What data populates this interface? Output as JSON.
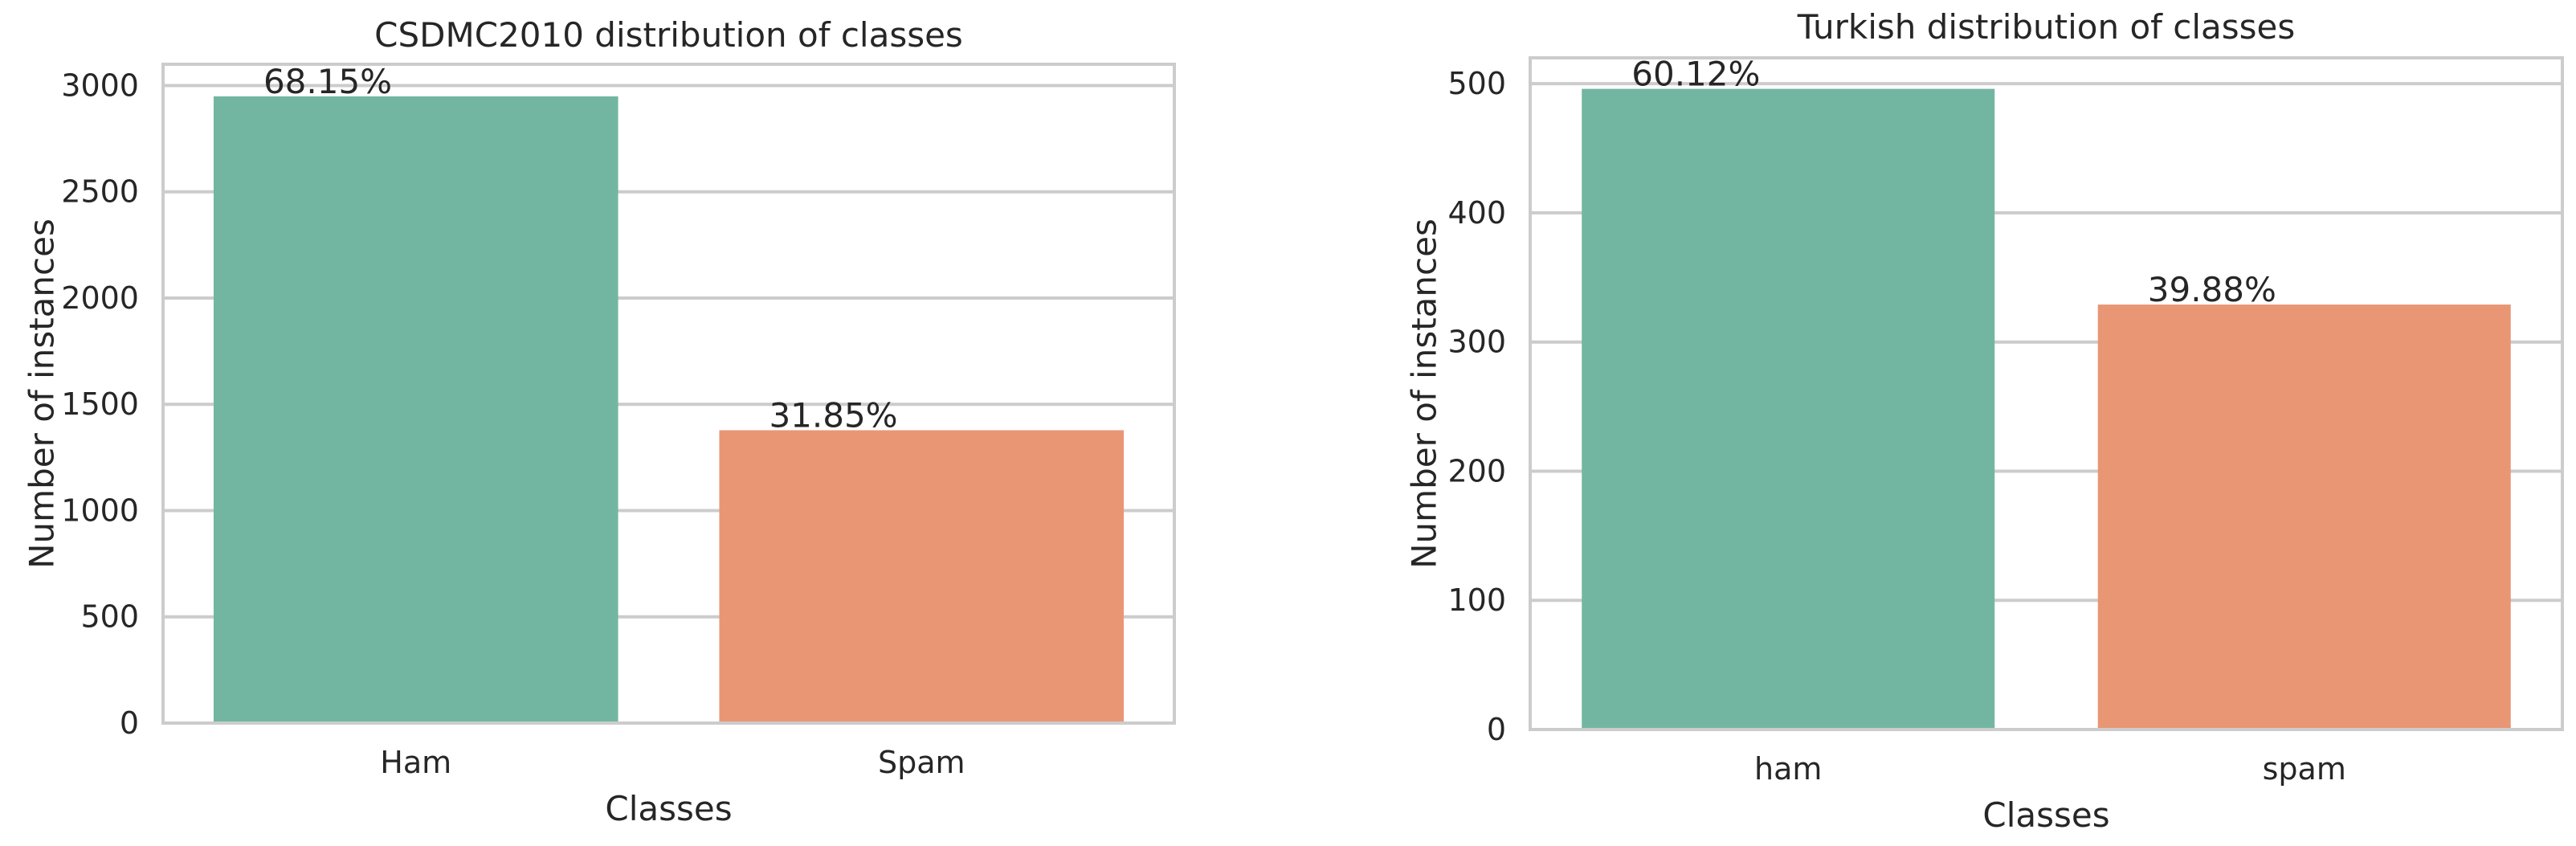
{
  "chart_data": [
    {
      "type": "bar",
      "title": "CSDMC2010 distribution of classes",
      "xlabel": "Classes",
      "ylabel": "Number of instances",
      "categories": [
        "Ham",
        "Spam"
      ],
      "values": [
        2949,
        1378
      ],
      "data_labels": [
        "68.15%",
        "31.85%"
      ],
      "colors": [
        "#72b6a1",
        "#e99675"
      ],
      "ylim": [
        0,
        3100
      ],
      "yticks": [
        0,
        500,
        1000,
        1500,
        2000,
        2500,
        3000
      ],
      "ytick_labels": [
        "0",
        "500",
        "1000",
        "1500",
        "2000",
        "2500",
        "3000"
      ],
      "grid": "horizontal"
    },
    {
      "type": "bar",
      "title": "Turkish distribution of classes",
      "xlabel": "Classes",
      "ylabel": "Number of instances",
      "categories": [
        "ham",
        "spam"
      ],
      "values": [
        496,
        329
      ],
      "data_labels": [
        "60.12%",
        "39.88%"
      ],
      "colors": [
        "#72b6a1",
        "#e99675"
      ],
      "ylim": [
        0,
        520
      ],
      "yticks": [
        0,
        100,
        200,
        300,
        400,
        500
      ],
      "ytick_labels": [
        "0",
        "100",
        "200",
        "300",
        "400",
        "500"
      ],
      "grid": "horizontal"
    }
  ]
}
